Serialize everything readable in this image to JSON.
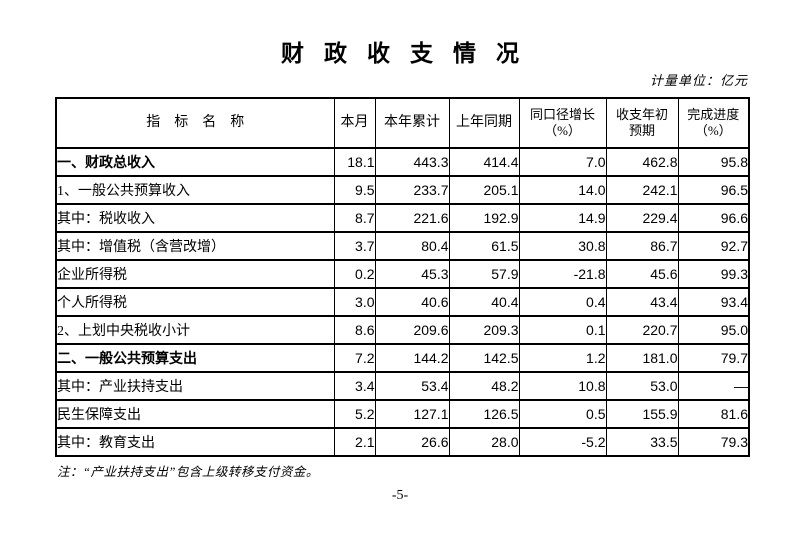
{
  "page": {
    "title": "财政收支情况",
    "unit_label": "计量单位：亿元",
    "note": "注：“产业扶持支出”包含上级转移支付资金。",
    "page_number": "-5-"
  },
  "colors": {
    "text": "#000000",
    "background": "#ffffff",
    "border": "#000000"
  },
  "table": {
    "headers": [
      "指　标　名　称",
      "本月",
      "本年累计",
      "上年同期",
      "同口径增长\n（%）",
      "收支年初\n预期",
      "完成进度\n（%）"
    ],
    "rows": [
      {
        "label": "一、财政总收入",
        "bold": true,
        "indent": 0,
        "values": [
          "18.1",
          "443.3",
          "414.4",
          "7.0",
          "462.8",
          "95.8"
        ]
      },
      {
        "label": "1、一般公共预算收入",
        "bold": false,
        "indent": 1,
        "values": [
          "9.5",
          "233.7",
          "205.1",
          "14.0",
          "242.1",
          "96.5"
        ]
      },
      {
        "label": "其中：税收收入",
        "bold": false,
        "indent": 2,
        "values": [
          "8.7",
          "221.6",
          "192.9",
          "14.9",
          "229.4",
          "96.6"
        ]
      },
      {
        "label": "其中：增值税（含营改增）",
        "bold": false,
        "indent": 3,
        "values": [
          "3.7",
          "80.4",
          "61.5",
          "30.8",
          "86.7",
          "92.7"
        ]
      },
      {
        "label": "企业所得税",
        "bold": false,
        "indent": 4,
        "values": [
          "0.2",
          "45.3",
          "57.9",
          "-21.8",
          "45.6",
          "99.3"
        ]
      },
      {
        "label": "个人所得税",
        "bold": false,
        "indent": 4,
        "values": [
          "3.0",
          "40.6",
          "40.4",
          "0.4",
          "43.4",
          "93.4"
        ]
      },
      {
        "label": "2、上划中央税收小计",
        "bold": false,
        "indent": 1,
        "values": [
          "8.6",
          "209.6",
          "209.3",
          "0.1",
          "220.7",
          "95.0"
        ]
      },
      {
        "label": "二、一般公共预算支出",
        "bold": true,
        "indent": 0,
        "values": [
          "7.2",
          "144.2",
          "142.5",
          "1.2",
          "181.0",
          "79.7"
        ]
      },
      {
        "label": "其中：产业扶持支出",
        "bold": false,
        "indent": 1,
        "values": [
          "3.4",
          "53.4",
          "48.2",
          "10.8",
          "53.0",
          "—"
        ]
      },
      {
        "label": "民生保障支出",
        "bold": false,
        "indent": 5,
        "values": [
          "5.2",
          "127.1",
          "126.5",
          "0.5",
          "155.9",
          "81.6"
        ]
      },
      {
        "label": "其中：教育支出",
        "bold": false,
        "indent": 6,
        "values": [
          "2.1",
          "26.6",
          "28.0",
          "-5.2",
          "33.5",
          "79.3"
        ]
      }
    ]
  }
}
